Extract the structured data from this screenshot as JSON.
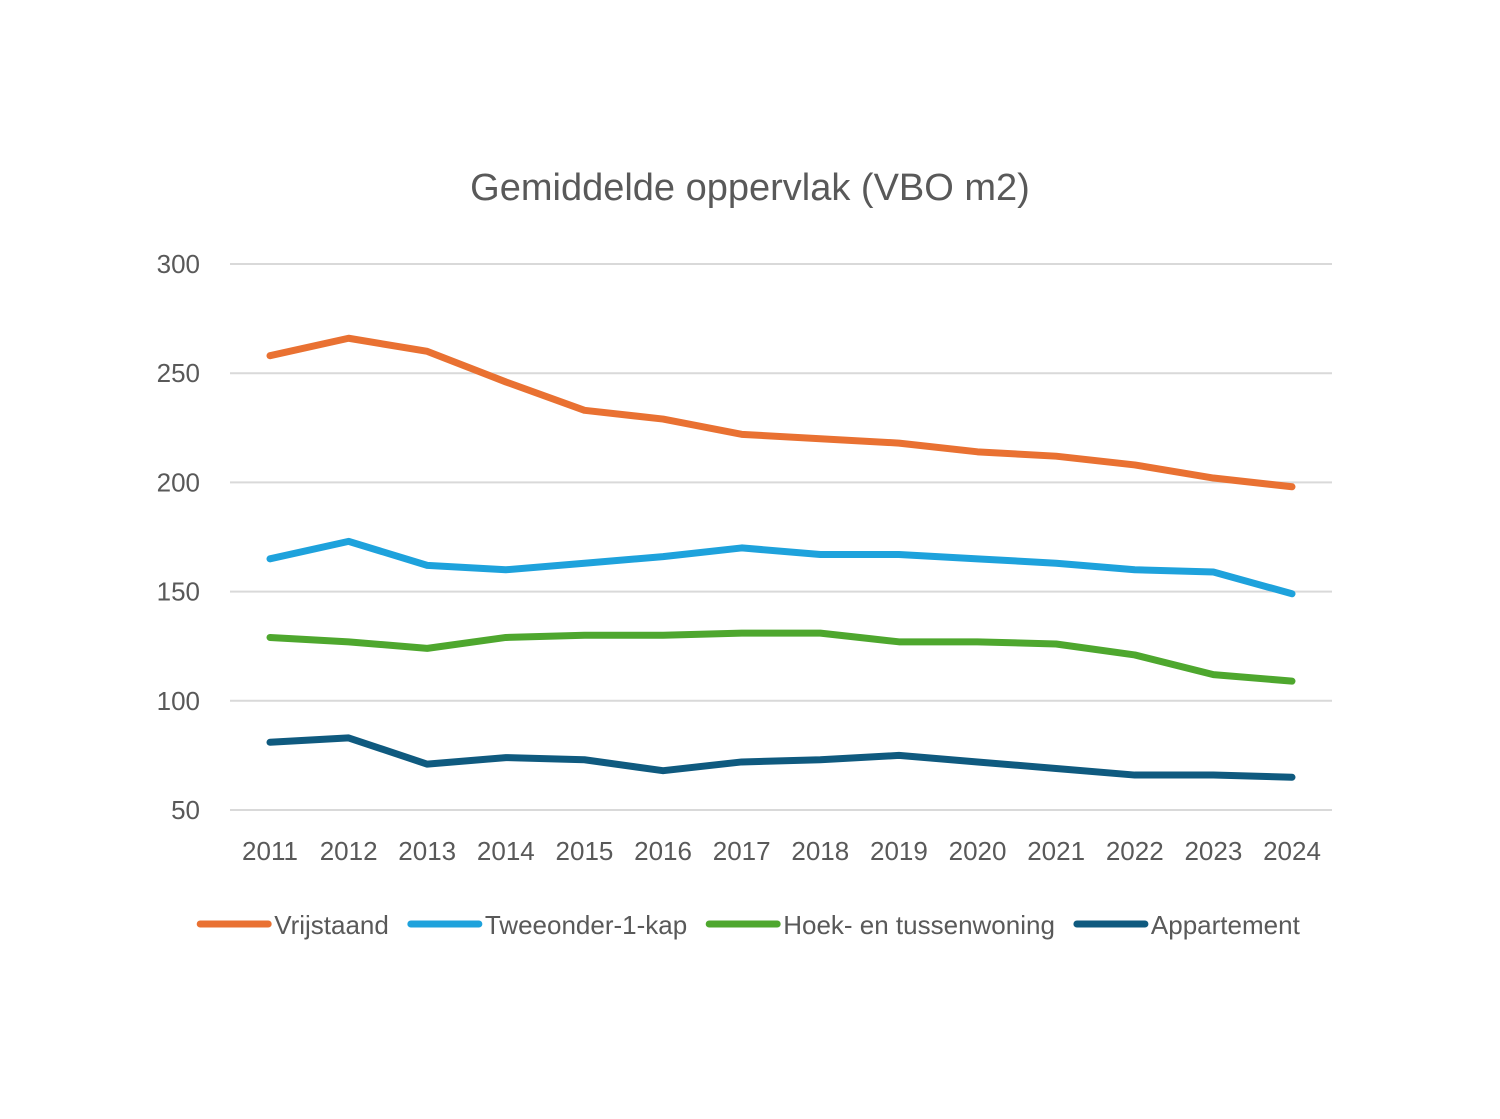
{
  "chart_data": {
    "type": "line",
    "title": "Gemiddelde oppervlak (VBO m2)",
    "xlabel": "",
    "ylabel": "",
    "ylim": [
      50,
      300
    ],
    "yticks": [
      50,
      100,
      150,
      200,
      250,
      300
    ],
    "grid": true,
    "legend_position": "bottom",
    "categories": [
      "2011",
      "2012",
      "2013",
      "2014",
      "2015",
      "2016",
      "2017",
      "2018",
      "2019",
      "2020",
      "2021",
      "2022",
      "2023",
      "2024"
    ],
    "series": [
      {
        "name": "Vrijstaand",
        "color": "#E97132",
        "values": [
          258,
          266,
          260,
          246,
          233,
          229,
          222,
          220,
          218,
          214,
          212,
          208,
          202,
          198
        ]
      },
      {
        "name": "Tweeonder-1-kap",
        "color": "#1EA2DC",
        "values": [
          165,
          173,
          162,
          160,
          163,
          166,
          170,
          167,
          167,
          165,
          163,
          160,
          159,
          149
        ]
      },
      {
        "name": "Hoek- en tussenwoning",
        "color": "#4EA72E",
        "values": [
          129,
          127,
          124,
          129,
          130,
          130,
          131,
          131,
          127,
          127,
          126,
          121,
          112,
          109
        ]
      },
      {
        "name": "Appartement",
        "color": "#0F5A7F",
        "values": [
          81,
          83,
          71,
          74,
          73,
          68,
          72,
          73,
          75,
          72,
          69,
          66,
          66,
          65
        ]
      }
    ]
  }
}
